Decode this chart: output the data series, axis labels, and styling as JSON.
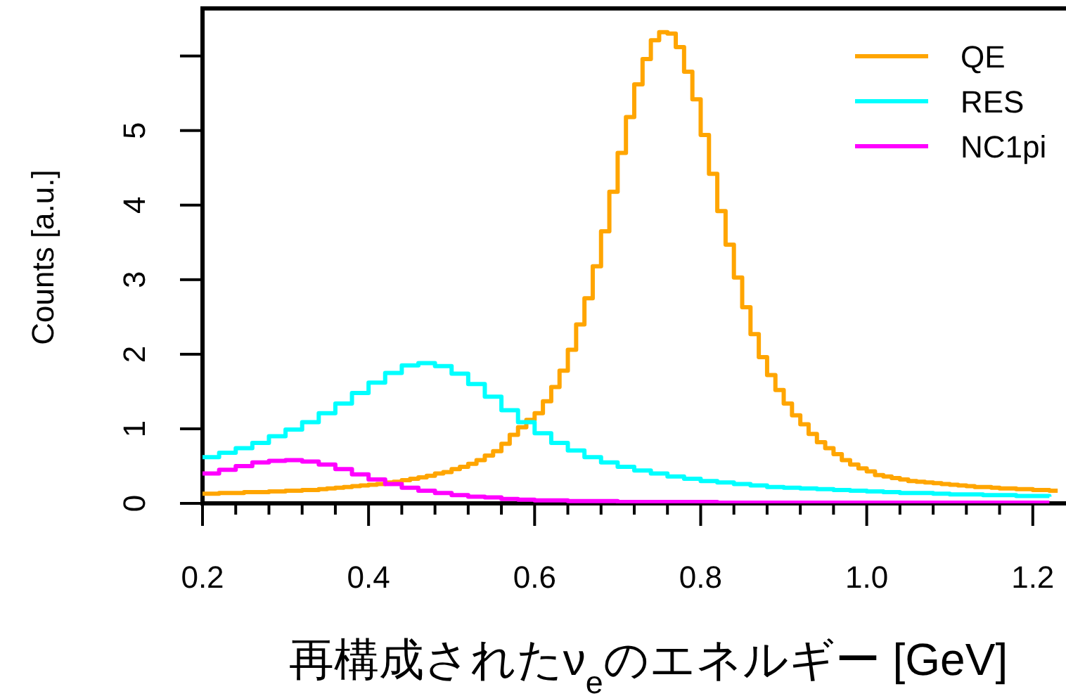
{
  "chart_data": {
    "type": "step",
    "xlabel": "再構成されたν$_{e}$のエネルギー [GeV]",
    "ylabel": "Counts [a.u.]",
    "xlim": [
      0.2,
      1.24
    ],
    "ylim": [
      0,
      6.6
    ],
    "xticks": [
      {
        "value": 0.2,
        "label": "0.2"
      },
      {
        "value": 0.24,
        "label": null
      },
      {
        "value": 0.28,
        "label": null
      },
      {
        "value": 0.32,
        "label": null
      },
      {
        "value": 0.36,
        "label": null
      },
      {
        "value": 0.4,
        "label": "0.4"
      },
      {
        "value": 0.44,
        "label": null
      },
      {
        "value": 0.48,
        "label": null
      },
      {
        "value": 0.52,
        "label": null
      },
      {
        "value": 0.56,
        "label": null
      },
      {
        "value": 0.6,
        "label": "0.6"
      },
      {
        "value": 0.64,
        "label": null
      },
      {
        "value": 0.68,
        "label": null
      },
      {
        "value": 0.72,
        "label": null
      },
      {
        "value": 0.76,
        "label": null
      },
      {
        "value": 0.8,
        "label": "0.8"
      },
      {
        "value": 0.84,
        "label": null
      },
      {
        "value": 0.88,
        "label": null
      },
      {
        "value": 0.92,
        "label": null
      },
      {
        "value": 0.96,
        "label": null
      },
      {
        "value": 1.0,
        "label": "1.0"
      },
      {
        "value": 1.04,
        "label": null
      },
      {
        "value": 1.08,
        "label": null
      },
      {
        "value": 1.12,
        "label": null
      },
      {
        "value": 1.16,
        "label": null
      },
      {
        "value": 1.2,
        "label": "1.2"
      }
    ],
    "yticks": [
      0,
      1,
      2,
      3,
      4,
      5,
      {
        "value": 6,
        "label": null
      }
    ],
    "legend": "top right",
    "line_style": "solid",
    "series": [
      {
        "name": "QE",
        "color": "#ffa500",
        "x": [
          0.2,
          0.21,
          0.22,
          0.23,
          0.24,
          0.25,
          0.26,
          0.27,
          0.28,
          0.29,
          0.3,
          0.31,
          0.32,
          0.33,
          0.34,
          0.35,
          0.36,
          0.37,
          0.38,
          0.39,
          0.4,
          0.41,
          0.42,
          0.43,
          0.44,
          0.45,
          0.46,
          0.47,
          0.48,
          0.49,
          0.5,
          0.51,
          0.52,
          0.53,
          0.54,
          0.55,
          0.56,
          0.57,
          0.58,
          0.59,
          0.6,
          0.61,
          0.62,
          0.63,
          0.64,
          0.65,
          0.66,
          0.67,
          0.68,
          0.69,
          0.7,
          0.71,
          0.72,
          0.73,
          0.74,
          0.75,
          0.76,
          0.77,
          0.78,
          0.79,
          0.8,
          0.81,
          0.82,
          0.83,
          0.84,
          0.85,
          0.86,
          0.87,
          0.88,
          0.89,
          0.9,
          0.91,
          0.92,
          0.93,
          0.94,
          0.95,
          0.96,
          0.97,
          0.98,
          0.99,
          1.0,
          1.01,
          1.02,
          1.03,
          1.04,
          1.05,
          1.06,
          1.07,
          1.08,
          1.09,
          1.1,
          1.11,
          1.12,
          1.13,
          1.14,
          1.15,
          1.16,
          1.17,
          1.18,
          1.19,
          1.2,
          1.21,
          1.22,
          1.23
        ],
        "values": [
          0.13,
          0.13,
          0.14,
          0.14,
          0.14,
          0.15,
          0.15,
          0.15,
          0.16,
          0.16,
          0.17,
          0.17,
          0.18,
          0.18,
          0.19,
          0.2,
          0.21,
          0.22,
          0.23,
          0.24,
          0.25,
          0.26,
          0.28,
          0.29,
          0.31,
          0.33,
          0.35,
          0.37,
          0.4,
          0.42,
          0.46,
          0.49,
          0.53,
          0.58,
          0.64,
          0.7,
          0.8,
          0.92,
          1.02,
          1.12,
          1.21,
          1.37,
          1.56,
          1.78,
          2.06,
          2.4,
          2.75,
          3.18,
          3.65,
          4.18,
          4.7,
          5.18,
          5.62,
          5.96,
          6.21,
          6.32,
          6.3,
          6.12,
          5.79,
          5.42,
          4.94,
          4.42,
          3.92,
          3.47,
          3.03,
          2.63,
          2.27,
          1.96,
          1.72,
          1.52,
          1.34,
          1.18,
          1.06,
          0.93,
          0.82,
          0.74,
          0.66,
          0.58,
          0.52,
          0.47,
          0.43,
          0.38,
          0.36,
          0.34,
          0.32,
          0.3,
          0.29,
          0.28,
          0.27,
          0.26,
          0.25,
          0.24,
          0.23,
          0.22,
          0.22,
          0.21,
          0.2,
          0.2,
          0.19,
          0.19,
          0.18,
          0.18,
          0.17,
          0.17
        ]
      },
      {
        "name": "RES",
        "color": "#00ffff",
        "x": [
          0.2,
          0.22,
          0.24,
          0.26,
          0.28,
          0.3,
          0.32,
          0.34,
          0.36,
          0.38,
          0.4,
          0.42,
          0.44,
          0.46,
          0.48,
          0.5,
          0.52,
          0.54,
          0.56,
          0.58,
          0.6,
          0.62,
          0.64,
          0.66,
          0.68,
          0.7,
          0.72,
          0.74,
          0.76,
          0.78,
          0.8,
          0.82,
          0.84,
          0.86,
          0.88,
          0.9,
          0.92,
          0.94,
          0.96,
          0.98,
          1.0,
          1.02,
          1.04,
          1.06,
          1.08,
          1.1,
          1.12,
          1.14,
          1.16,
          1.18,
          1.2,
          1.22
        ],
        "values": [
          0.62,
          0.68,
          0.74,
          0.81,
          0.9,
          0.99,
          1.09,
          1.21,
          1.34,
          1.48,
          1.62,
          1.75,
          1.85,
          1.88,
          1.84,
          1.74,
          1.6,
          1.43,
          1.25,
          1.09,
          0.94,
          0.81,
          0.71,
          0.62,
          0.55,
          0.49,
          0.44,
          0.4,
          0.36,
          0.33,
          0.3,
          0.28,
          0.26,
          0.24,
          0.22,
          0.21,
          0.2,
          0.19,
          0.18,
          0.17,
          0.16,
          0.15,
          0.14,
          0.14,
          0.13,
          0.12,
          0.12,
          0.11,
          0.11,
          0.1,
          0.1,
          0.09
        ]
      },
      {
        "name": "NC1pi",
        "color": "#ff00ff",
        "x": [
          0.2,
          0.22,
          0.24,
          0.26,
          0.28,
          0.3,
          0.32,
          0.34,
          0.36,
          0.38,
          0.4,
          0.42,
          0.44,
          0.46,
          0.48,
          0.5,
          0.52,
          0.54,
          0.56,
          0.58,
          0.6,
          0.62,
          0.64,
          0.66,
          0.68,
          0.7,
          0.72,
          0.74,
          0.76,
          0.78,
          0.8,
          0.82,
          0.84,
          0.86,
          0.88,
          0.9,
          0.92,
          0.94,
          0.96,
          0.98,
          1.0,
          1.02,
          1.04,
          1.06,
          1.08,
          1.1,
          1.12,
          1.14,
          1.16,
          1.18,
          1.2,
          1.22
        ],
        "values": [
          0.4,
          0.45,
          0.5,
          0.55,
          0.57,
          0.58,
          0.56,
          0.52,
          0.46,
          0.39,
          0.32,
          0.26,
          0.21,
          0.17,
          0.14,
          0.11,
          0.09,
          0.08,
          0.06,
          0.05,
          0.04,
          0.04,
          0.03,
          0.03,
          0.03,
          0.02,
          0.02,
          0.02,
          0.02,
          0.02,
          0.02,
          0.01,
          0.01,
          0.01,
          0.01,
          0.01,
          0.01,
          0.01,
          0.01,
          0.01,
          0.01,
          0.01,
          0.01,
          0.01,
          0.01,
          0.01,
          0.01,
          0.01,
          0.01,
          0.01,
          0.01,
          0.01
        ]
      }
    ]
  }
}
